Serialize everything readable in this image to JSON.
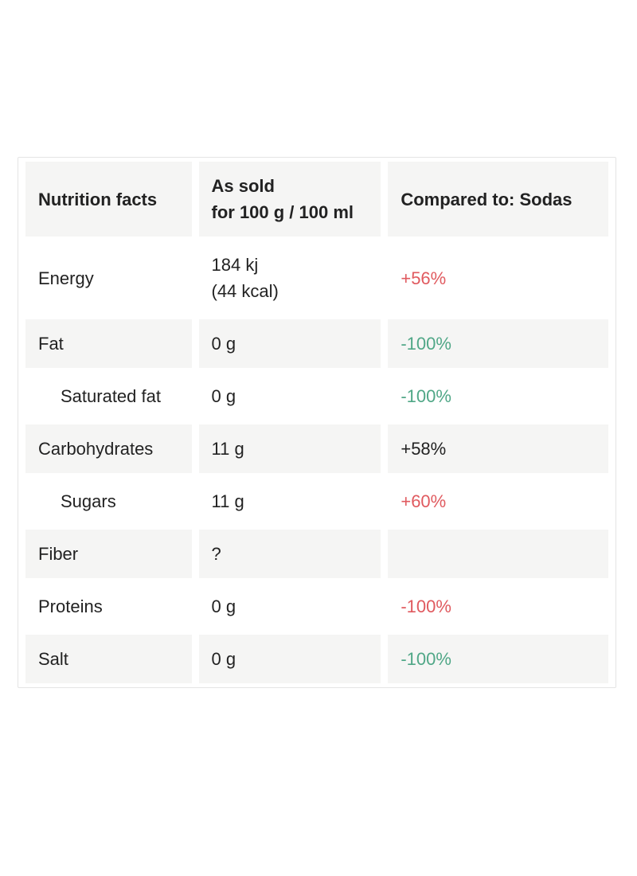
{
  "panel": {
    "header": {
      "nutrient_col": "Nutrition facts",
      "as_sold_col": "As sold\nfor 100 g / 100 ml",
      "compared_col": "Compared to: Sodas"
    },
    "rows": [
      {
        "name": "Energy",
        "value": "184 kj\n(44 kcal)",
        "comparison": "+56%",
        "comparison_color": "red",
        "indent": false
      },
      {
        "name": "Fat",
        "value": "0 g",
        "comparison": "-100%",
        "comparison_color": "green",
        "indent": false
      },
      {
        "name": "Saturated fat",
        "value": "0 g",
        "comparison": "-100%",
        "comparison_color": "green",
        "indent": true
      },
      {
        "name": "Carbohydrates",
        "value": "11 g",
        "comparison": "+58%",
        "comparison_color": "dark",
        "indent": false
      },
      {
        "name": "Sugars",
        "value": "11 g",
        "comparison": "+60%",
        "comparison_color": "red",
        "indent": true
      },
      {
        "name": "Fiber",
        "value": "?",
        "comparison": "",
        "comparison_color": null,
        "indent": false
      },
      {
        "name": "Proteins",
        "value": "0 g",
        "comparison": "-100%",
        "comparison_color": "red",
        "indent": false
      },
      {
        "name": "Salt",
        "value": "0 g",
        "comparison": "-100%",
        "comparison_color": "green",
        "indent": false
      }
    ],
    "colors": {
      "red": "#e05a5f",
      "green": "#50a787",
      "dark": "#222222"
    }
  }
}
